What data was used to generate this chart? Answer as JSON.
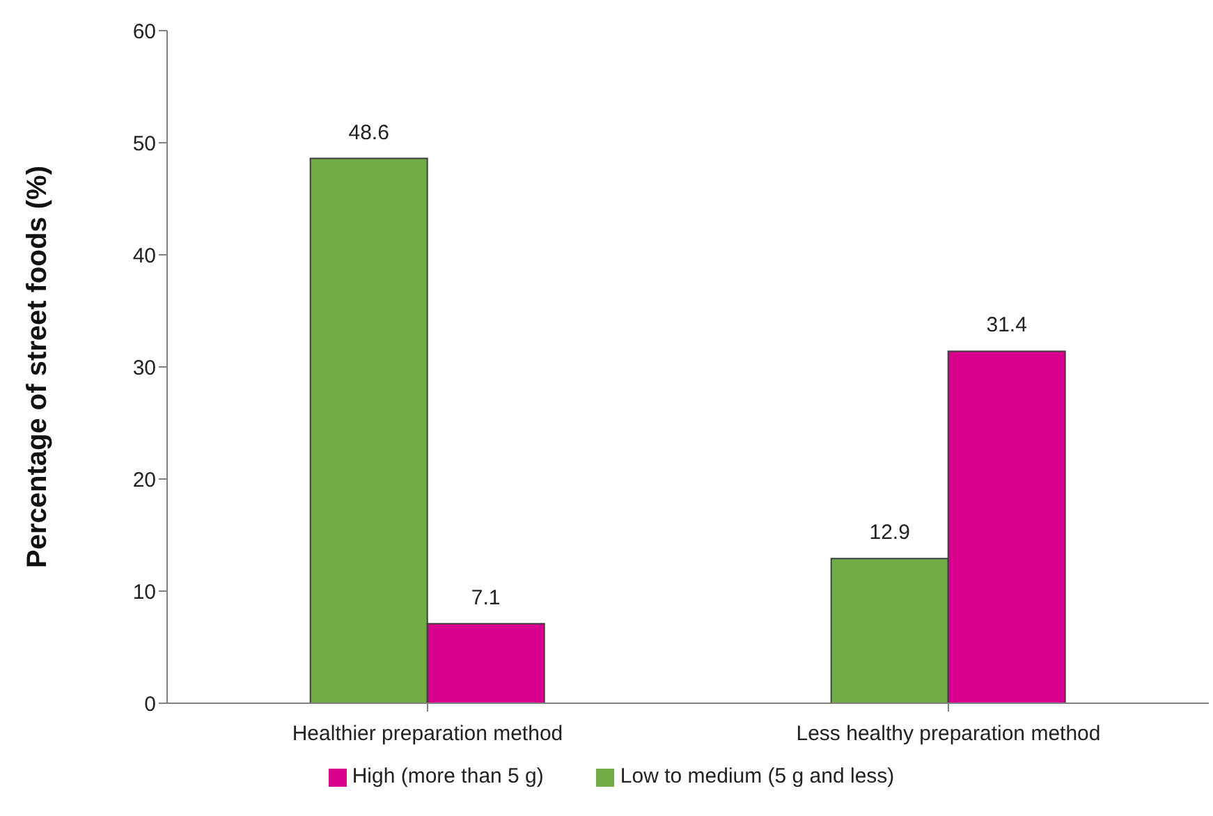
{
  "chart_data": {
    "type": "bar",
    "ylabel": "Percentage of street foods (%)",
    "categories": [
      "Healthier preparation method",
      "Less healthy preparation method"
    ],
    "series": [
      {
        "name": "Low to medium (5 g and less)",
        "color": "#70ad47",
        "values": [
          48.6,
          12.9
        ]
      },
      {
        "name": "High (more than 5 g)",
        "color": "#d9008d",
        "values": [
          7.1,
          31.4
        ]
      }
    ],
    "ylim": [
      0,
      60
    ],
    "yticks": [
      0,
      10,
      20,
      30,
      40,
      50,
      60
    ],
    "grid": false,
    "legend": "bottom",
    "data_labels": true
  }
}
